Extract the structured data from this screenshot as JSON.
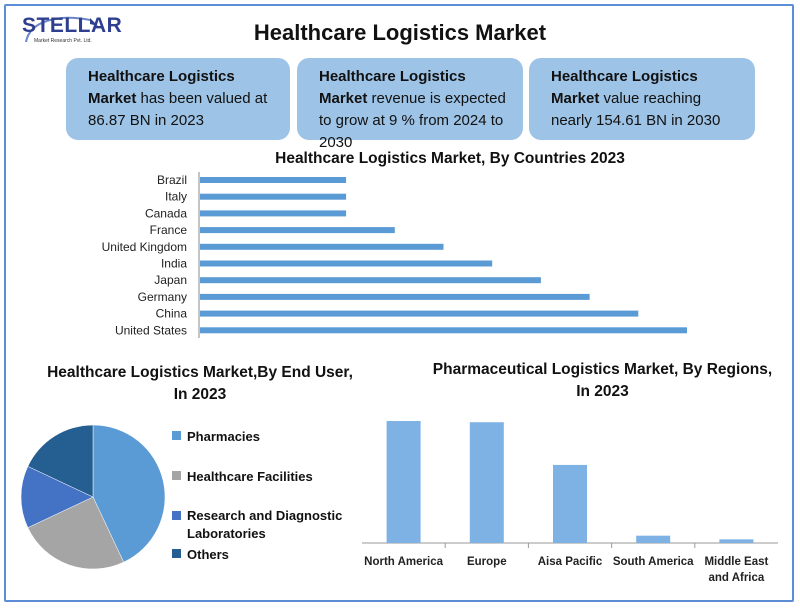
{
  "brand": {
    "name": "STELLAR",
    "tagline": "Market Research Pvt. Ltd."
  },
  "title": "Healthcare Logistics Market",
  "cards": [
    {
      "bold": "Healthcare Logistics Market",
      "text": " has been valued at 86.87 BN in 2023"
    },
    {
      "bold": "Healthcare Logistics Market",
      "text": " revenue is expected to grow at 9 % from 2024 to 2030"
    },
    {
      "bold": "Healthcare Logistics Market",
      "text": " value reaching nearly 154.61 BN in 2030"
    }
  ],
  "colors": {
    "bar": "#5b9bd5",
    "column": "#7fb2e4",
    "card": "#9dc3e6",
    "border": "#5b8ed6"
  },
  "chart_data": [
    {
      "type": "bar",
      "orientation": "horizontal",
      "title": "Healthcare Logistics Market, By Countries 2023",
      "categories": [
        "Brazil",
        "Italy",
        "Canada",
        "France",
        "United Kingdom",
        "India",
        "Japan",
        "Germany",
        "China",
        "United States"
      ],
      "values": [
        3,
        3,
        3,
        4,
        5,
        6,
        7,
        8,
        9,
        10
      ],
      "xlim": [
        0,
        10
      ],
      "grid": false,
      "legend": "none"
    },
    {
      "type": "pie",
      "title": "Healthcare Logistics Market,By End User, In 2023",
      "labels": [
        "Pharmacies",
        "Healthcare Facilities",
        "Research and Diagnostic Laboratories",
        "Others"
      ],
      "values": [
        43,
        25,
        14,
        18
      ],
      "colors": [
        "#5b9bd5",
        "#a5a5a5",
        "#4472c4",
        "#255e91"
      ],
      "legend": "right"
    },
    {
      "type": "bar",
      "orientation": "vertical",
      "title": "Pharmaceutical Logistics Market, By Regions, In 2023",
      "categories": [
        "North America",
        "Europe",
        "Aisa Pacific",
        "South America",
        "Middle East and Africa"
      ],
      "values": [
        100,
        99,
        64,
        6,
        3
      ],
      "ylim": [
        0,
        100
      ],
      "grid": false,
      "legend": "none"
    }
  ]
}
